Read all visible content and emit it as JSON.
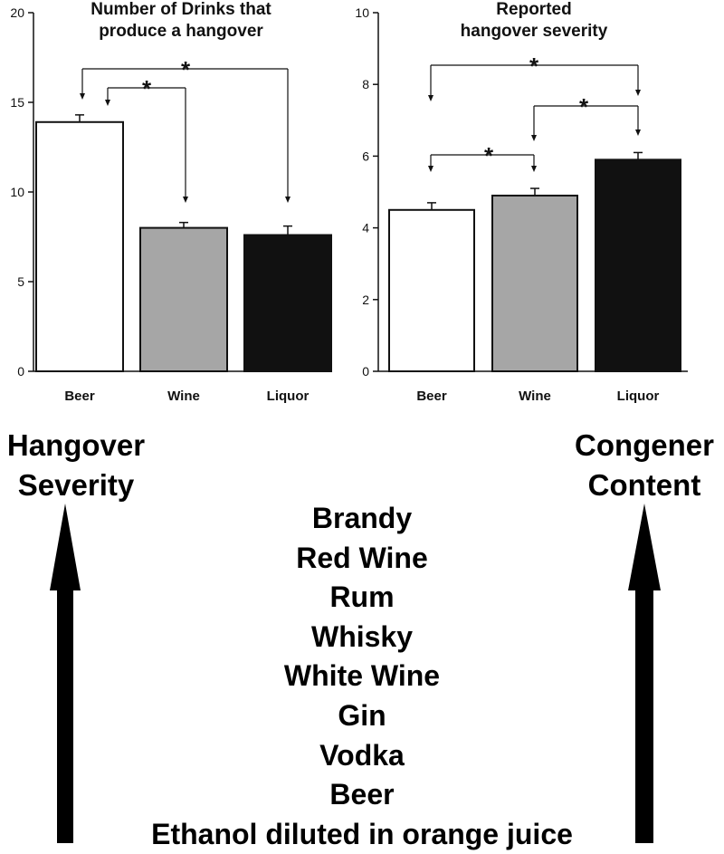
{
  "chart_data": [
    {
      "type": "bar",
      "title_lines": [
        "Number of Drinks that",
        "produce a hangover"
      ],
      "categories": [
        "Beer",
        "Wine",
        "Liquor"
      ],
      "values": [
        13.9,
        8.0,
        7.6
      ],
      "errors": [
        0.4,
        0.3,
        0.5
      ],
      "bar_colors": [
        "#ffffff",
        "#a6a6a6",
        "#111111"
      ],
      "yticks": [
        0,
        5,
        10,
        15,
        20
      ],
      "ylim": [
        0,
        20
      ],
      "xlabel": "",
      "ylabel": "",
      "significance": [
        {
          "from": "Beer",
          "to": "Liquor",
          "label": "*"
        },
        {
          "from": "Beer",
          "to": "Wine",
          "label": "*"
        }
      ]
    },
    {
      "type": "bar",
      "title_lines": [
        "Reported",
        "hangover severity"
      ],
      "categories": [
        "Beer",
        "Wine",
        "Liquor"
      ],
      "values": [
        4.5,
        4.9,
        5.9
      ],
      "errors": [
        0.2,
        0.2,
        0.2
      ],
      "bar_colors": [
        "#ffffff",
        "#a6a6a6",
        "#111111"
      ],
      "yticks": [
        0,
        2,
        4,
        6,
        8,
        10
      ],
      "ylim": [
        0,
        10
      ],
      "xlabel": "",
      "ylabel": "",
      "significance": [
        {
          "from": "Beer",
          "to": "Liquor",
          "label": "*"
        },
        {
          "from": "Wine",
          "to": "Liquor",
          "label": "*"
        },
        {
          "from": "Beer",
          "to": "Wine",
          "label": "*"
        }
      ]
    }
  ],
  "left_axis_label": {
    "line1": "Hangover",
    "line2": "Severity"
  },
  "right_axis_label": {
    "line1": "Congener",
    "line2": "Content"
  },
  "beverages": [
    "Brandy",
    "Red Wine",
    "Rum",
    "Whisky",
    "White Wine",
    "Gin",
    "Vodka",
    "Beer",
    "Ethanol diluted in orange juice"
  ]
}
